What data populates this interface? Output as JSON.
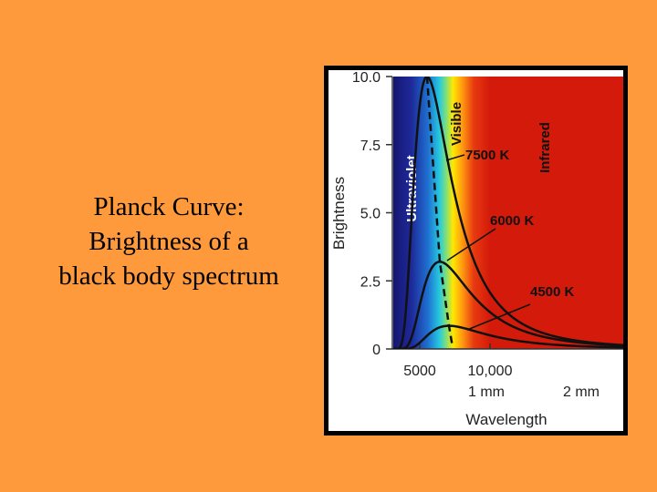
{
  "slide": {
    "title_lines": [
      "Planck Curve:",
      "Brightness of a",
      "black body spectrum"
    ]
  },
  "colors": {
    "background": "#FF9A3C",
    "ultraviolet_band": "#1A1A80",
    "infrared_band": "#D41A0A",
    "curve": "#111111"
  },
  "chart_data": {
    "type": "line",
    "title": "",
    "xlabel": "Wavelength",
    "ylabel": "Brightness",
    "ylim": [
      0,
      10
    ],
    "yticks": [
      {
        "value": 0,
        "label": "0"
      },
      {
        "value": 2.5,
        "label": "2.5"
      },
      {
        "value": 5.0,
        "label": "5.0"
      },
      {
        "value": 7.5,
        "label": "7.5"
      },
      {
        "value": 10.0,
        "label": "10.0"
      }
    ],
    "xticks": [
      {
        "label": "5000"
      },
      {
        "label": "10,000"
      }
    ],
    "secondary_x_labels": [
      {
        "label": "1  mm"
      },
      {
        "label": "2  mm"
      }
    ],
    "bands": [
      {
        "name": "Ultraviolet",
        "color": "#1A1A80"
      },
      {
        "name": "Visible",
        "color": "#FFE000"
      },
      {
        "name": "Infrared",
        "color": "#D41A0A"
      }
    ],
    "series": [
      {
        "name": "7500 K",
        "temperature": 7500,
        "peak_brightness": 10.0
      },
      {
        "name": "6000 K",
        "temperature": 6000,
        "peak_brightness": 3.2
      },
      {
        "name": "4500 K",
        "temperature": 4500,
        "peak_brightness": 0.85
      }
    ],
    "peak_line": "dashed",
    "grid": false
  }
}
